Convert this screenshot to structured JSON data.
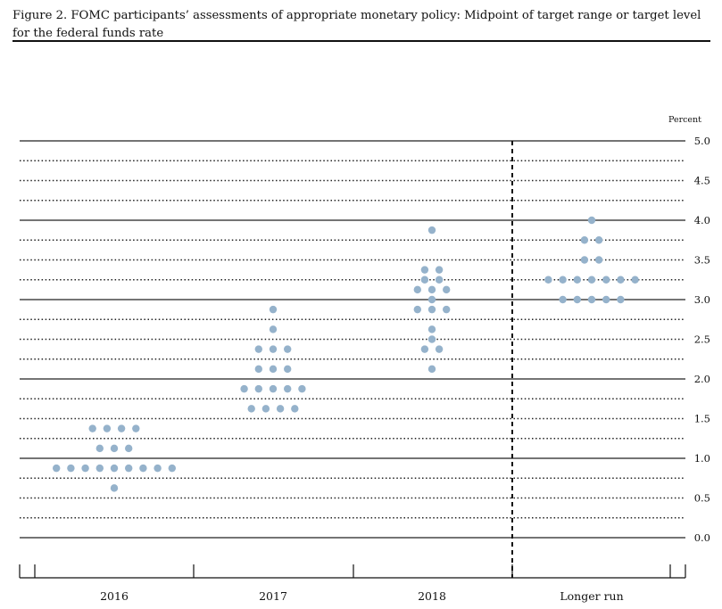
{
  "figure": {
    "title": "Figure 2. FOMC participants’ assessments of appropriate monetary policy: Midpoint of target range or target level for the federal funds rate"
  },
  "chart_data": {
    "type": "scatter",
    "subtype": "dot-plot",
    "title": "Figure 2. FOMC participants’ assessments of appropriate monetary policy: Midpoint of target range or target level for the federal funds rate",
    "ylabel": "Percent",
    "ylim": [
      0,
      5
    ],
    "y_ticks": [
      "0.0",
      "0.5",
      "1.0",
      "1.5",
      "2.0",
      "2.5",
      "3.0",
      "3.5",
      "4.0",
      "4.5",
      "5.0"
    ],
    "categories": [
      "2016",
      "2017",
      "2018",
      "Longer run"
    ],
    "dot_color": "#95b2cb",
    "dots": [
      {
        "category": "2016",
        "y": 1.375,
        "count": 4
      },
      {
        "category": "2016",
        "y": 1.125,
        "count": 3
      },
      {
        "category": "2016",
        "y": 0.875,
        "count": 9
      },
      {
        "category": "2016",
        "y": 0.625,
        "count": 1
      },
      {
        "category": "2017",
        "y": 2.875,
        "count": 1
      },
      {
        "category": "2017",
        "y": 2.625,
        "count": 1
      },
      {
        "category": "2017",
        "y": 2.375,
        "count": 3
      },
      {
        "category": "2017",
        "y": 2.125,
        "count": 3
      },
      {
        "category": "2017",
        "y": 1.875,
        "count": 5
      },
      {
        "category": "2017",
        "y": 1.625,
        "count": 4
      },
      {
        "category": "2018",
        "y": 3.875,
        "count": 1
      },
      {
        "category": "2018",
        "y": 3.375,
        "count": 2
      },
      {
        "category": "2018",
        "y": 3.25,
        "count": 2
      },
      {
        "category": "2018",
        "y": 3.125,
        "count": 3
      },
      {
        "category": "2018",
        "y": 3.0,
        "count": 1
      },
      {
        "category": "2018",
        "y": 2.875,
        "count": 3
      },
      {
        "category": "2018",
        "y": 2.625,
        "count": 1
      },
      {
        "category": "2018",
        "y": 2.5,
        "count": 1
      },
      {
        "category": "2018",
        "y": 2.375,
        "count": 2
      },
      {
        "category": "2018",
        "y": 2.125,
        "count": 1
      },
      {
        "category": "Longer run",
        "y": 4.0,
        "count": 1
      },
      {
        "category": "Longer run",
        "y": 3.75,
        "count": 2
      },
      {
        "category": "Longer run",
        "y": 3.5,
        "count": 2
      },
      {
        "category": "Longer run",
        "y": 3.25,
        "count": 7
      },
      {
        "category": "Longer run",
        "y": 3.0,
        "count": 5
      }
    ],
    "grid": "solid lines at whole percents, dotted lines at quarter percents",
    "divider": "dashed vertical line between 2018 and Longer run",
    "legend": "none"
  }
}
